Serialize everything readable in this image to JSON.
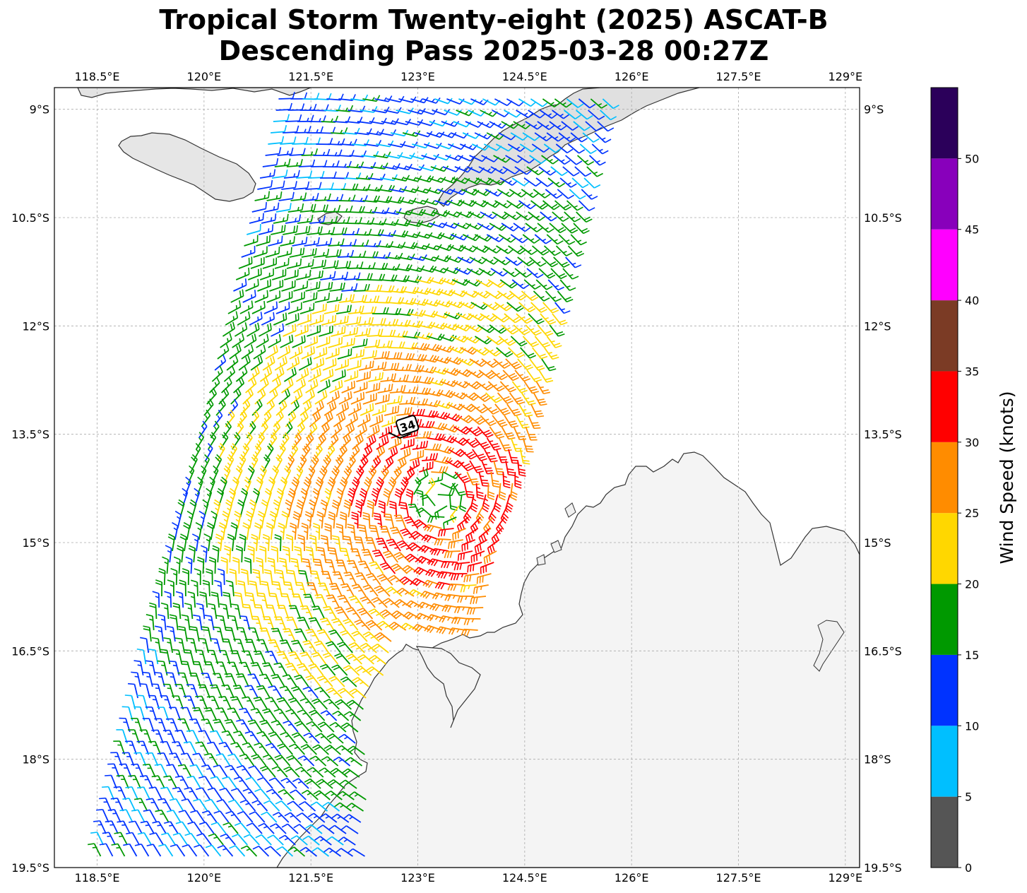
{
  "title": {
    "line1": "Tropical Storm Twenty-eight (2025) ASCAT-B",
    "line2": "Descending Pass 2025-03-28 00:27Z"
  },
  "map": {
    "lon_range": [
      117.9,
      129.2
    ],
    "lat_range": [
      -19.5,
      -8.7
    ],
    "lon_ticks": [
      118.5,
      120,
      121.5,
      123,
      124.5,
      126,
      127.5,
      129
    ],
    "lon_tick_labels": [
      "118.5°E",
      "120°E",
      "121.5°E",
      "123°E",
      "124.5°E",
      "126°E",
      "127.5°E",
      "129°E"
    ],
    "lat_ticks": [
      -9,
      -10.5,
      -12,
      -13.5,
      -15,
      -16.5,
      -18,
      -19.5
    ],
    "lat_tick_labels": [
      "9°S",
      "10.5°S",
      "12°S",
      "13.5°S",
      "15°S",
      "16.5°S",
      "18°S",
      "19.5°S"
    ],
    "storm_center": {
      "lon": 123.3,
      "lat": -14.4
    },
    "storm_label": {
      "lon": 122.92,
      "lat": -13.4,
      "text": "34"
    }
  },
  "colorbar": {
    "label": "Wind Speed (knots)",
    "ticks": [
      "0",
      "5",
      "10",
      "15",
      "20",
      "25",
      "30",
      "35",
      "40",
      "45",
      "50"
    ],
    "colors": [
      "#555555",
      "#00bfff",
      "#0033ff",
      "#009900",
      "#ffd700",
      "#ff8c00",
      "#ff0000",
      "#7b3b25",
      "#ff00ff",
      "#8800bb",
      "#2b005a"
    ],
    "bounds": [
      0,
      5,
      10,
      15,
      20,
      25,
      30,
      35,
      40,
      45,
      50,
      55
    ]
  }
}
